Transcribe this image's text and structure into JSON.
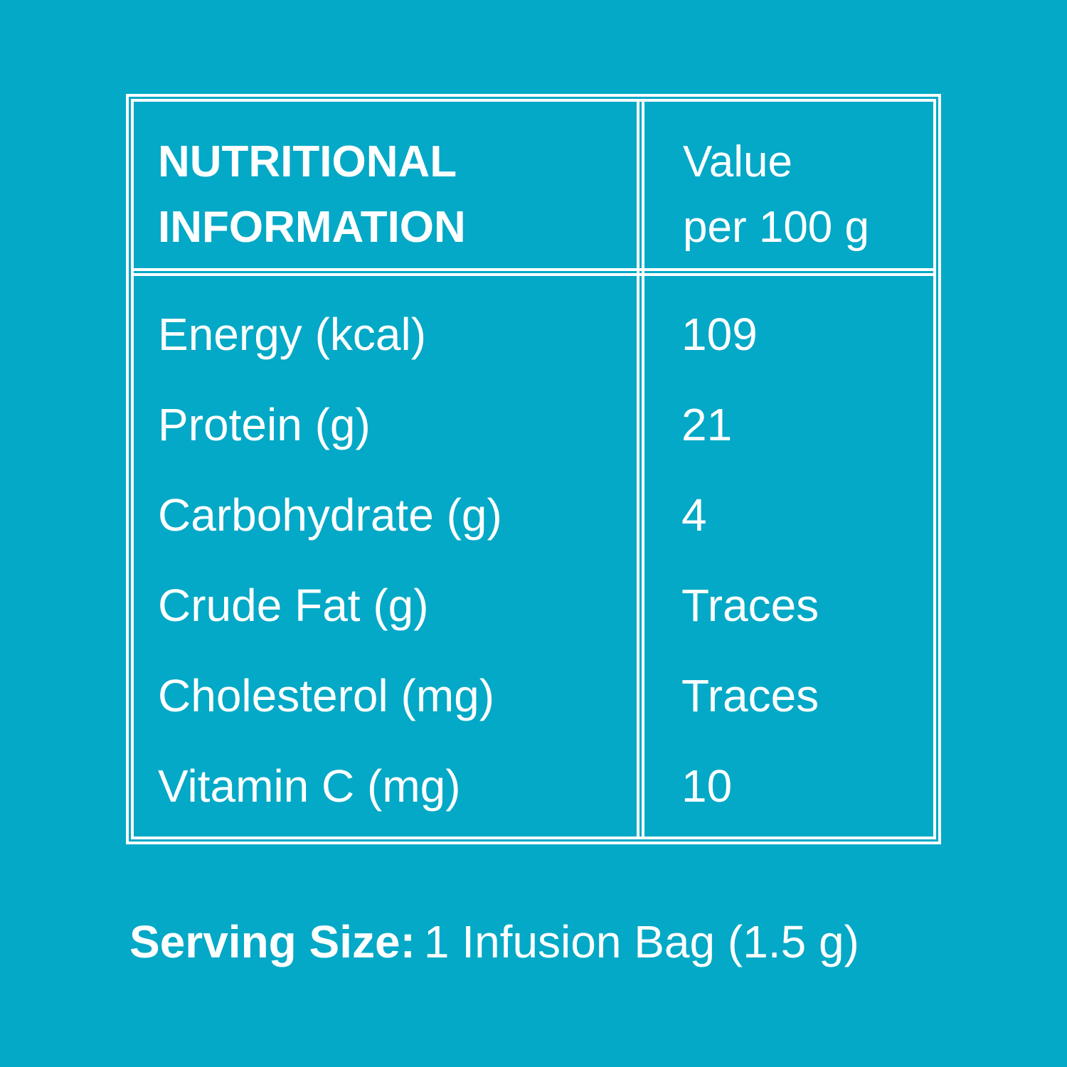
{
  "table": {
    "header": [
      [
        "NUTRITIONAL",
        "INFORMATION"
      ],
      [
        "Value",
        "per 100 g"
      ]
    ],
    "rows": [
      [
        "Energy (kcal)",
        109
      ],
      [
        "Protein (g)",
        21
      ],
      [
        "Carbohydrate (g)",
        4
      ],
      [
        "Crude Fat (g)",
        "Traces"
      ],
      [
        "Cholesterol (mg)",
        "Traces"
      ],
      [
        "Vitamin C (mg)",
        10
      ]
    ]
  },
  "footer": {
    "label": "Serving Size:",
    "text": "1 Infusion Bag (1.5 g)"
  }
}
